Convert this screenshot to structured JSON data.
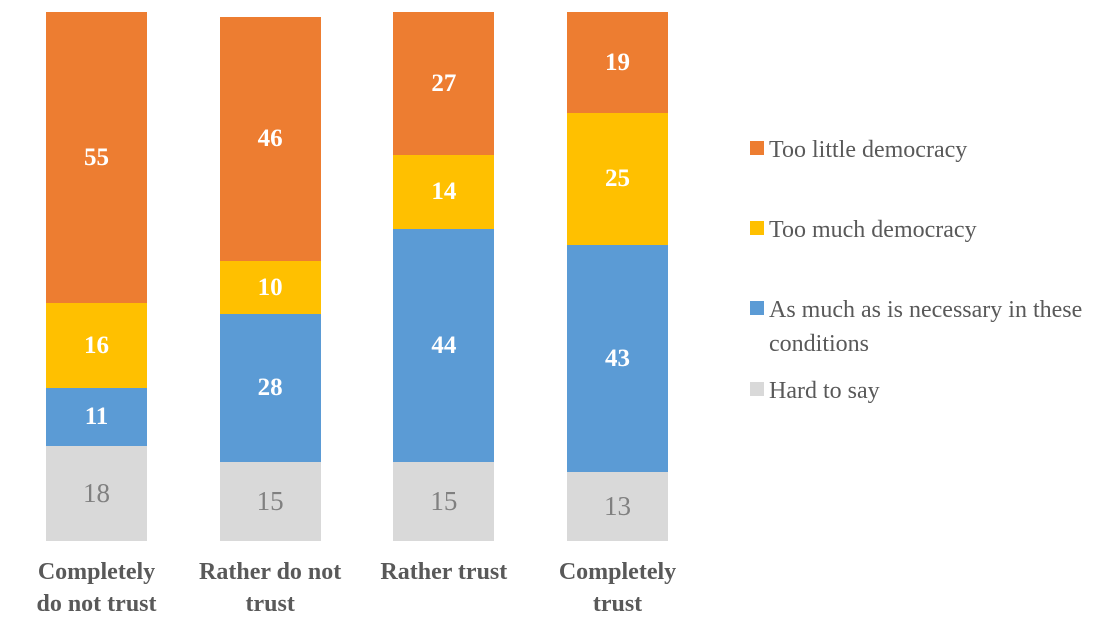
{
  "background": "#FFFFFF",
  "text_color": "#595959",
  "chart_data": {
    "type": "bar",
    "subtype": "stacked-column",
    "title": "",
    "xlabel": "",
    "ylabel": "",
    "ylim": [
      0,
      100
    ],
    "grid": false,
    "axes_visible": false,
    "legend_position": "right",
    "categories": [
      "Completely do not trust",
      "Rather do not trust",
      "Rather trust",
      "Completely trust"
    ],
    "category_lines": [
      [
        "Completely",
        "do not trust"
      ],
      [
        "Rather do not",
        "trust"
      ],
      [
        "Rather trust"
      ],
      [
        "Completely",
        "trust"
      ]
    ],
    "series": [
      {
        "name": "Too little democracy",
        "color": "#ED7D31",
        "label_color": "#FFFFFF",
        "label_bold": true,
        "values": [
          55,
          46,
          27,
          19
        ]
      },
      {
        "name": "Too much democracy",
        "color": "#FFC000",
        "label_color": "#FFFFFF",
        "label_bold": true,
        "values": [
          16,
          10,
          14,
          25
        ]
      },
      {
        "name": "As much as is necessary in these conditions",
        "color": "#5B9BD5",
        "label_color": "#FFFFFF",
        "label_bold": true,
        "values": [
          11,
          28,
          44,
          43
        ]
      },
      {
        "name": "Hard to say",
        "color": "#D9D9D9",
        "label_color": "#808080",
        "label_bold": false,
        "values": [
          18,
          15,
          15,
          13
        ]
      }
    ]
  }
}
